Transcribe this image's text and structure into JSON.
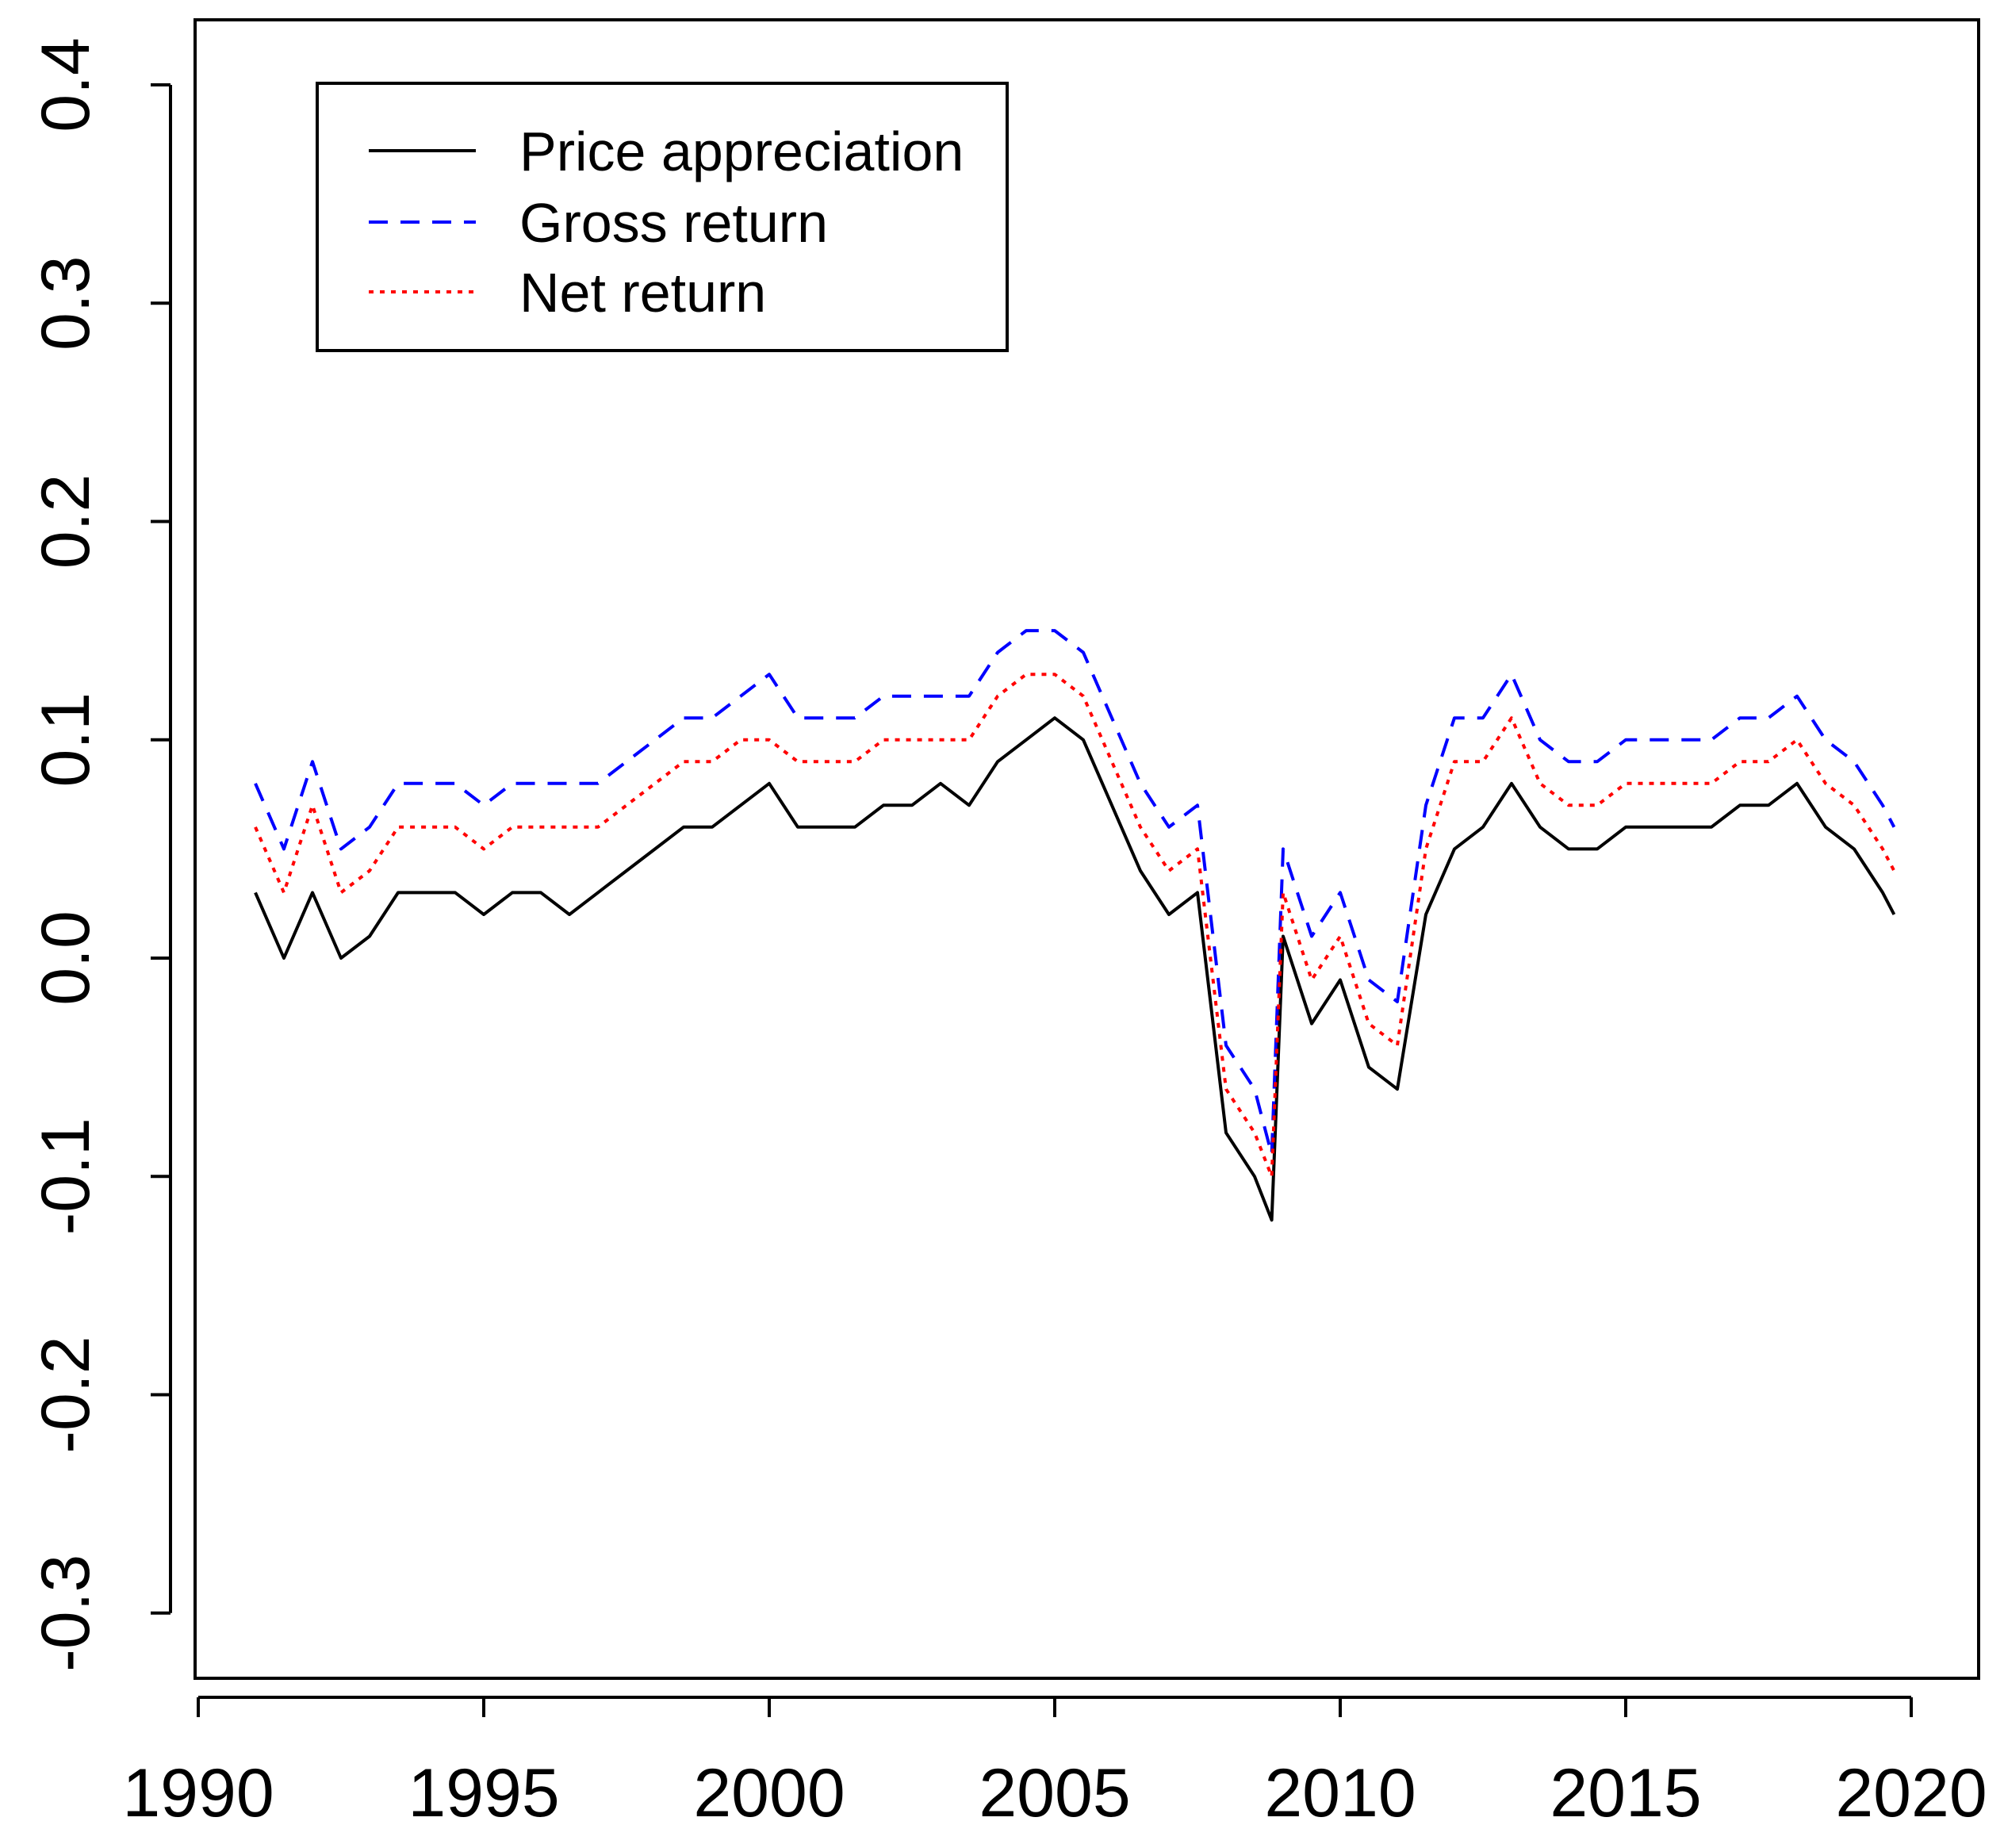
{
  "chart_data": {
    "type": "line",
    "title": "",
    "xlabel": "",
    "ylabel": "",
    "xlim": [
      1990,
      2020
    ],
    "ylim": [
      -0.33,
      0.4
    ],
    "x_ticks": [
      1990,
      1995,
      2000,
      2005,
      2010,
      2015,
      2020
    ],
    "x_tick_labels": [
      "1990",
      "1995",
      "2000",
      "2005",
      "2010",
      "2015",
      "2020"
    ],
    "y_ticks": [
      -0.3,
      -0.2,
      -0.1,
      0.0,
      0.1,
      0.2,
      0.3,
      0.4
    ],
    "y_tick_labels": [
      "-0.3",
      "-0.2",
      "-0.1",
      "0.0",
      "0.1",
      "0.2",
      "0.3",
      "0.4"
    ],
    "legend": {
      "position": "top-left",
      "entries": [
        {
          "label": "Price appreciation",
          "color": "#000000",
          "style": "solid"
        },
        {
          "label": "Gross return",
          "color": "#0000ff",
          "style": "dashed"
        },
        {
          "label": "Net return",
          "color": "#ff0000",
          "style": "dotted"
        }
      ]
    },
    "x": [
      1991.0,
      1991.5,
      1992.0,
      1992.5,
      1993.0,
      1993.5,
      1994.0,
      1994.5,
      1995.0,
      1995.5,
      1996.0,
      1996.5,
      1997.0,
      1997.5,
      1998.0,
      1998.5,
      1999.0,
      1999.5,
      2000.0,
      2000.5,
      2001.0,
      2001.5,
      2002.0,
      2002.5,
      2003.0,
      2003.5,
      2004.0,
      2004.5,
      2005.0,
      2005.5,
      2006.0,
      2006.5,
      2007.0,
      2007.5,
      2008.0,
      2008.5,
      2008.8,
      2009.0,
      2009.5,
      2010.0,
      2010.5,
      2011.0,
      2011.5,
      2012.0,
      2012.5,
      2013.0,
      2013.5,
      2014.0,
      2014.5,
      2015.0,
      2015.5,
      2016.0,
      2016.5,
      2017.0,
      2017.5,
      2018.0,
      2018.5,
      2019.0,
      2019.5,
      2019.7
    ],
    "series": [
      {
        "name": "Price appreciation",
        "color": "#000000",
        "style": "solid",
        "values": [
          0.03,
          0.0,
          0.03,
          0.0,
          0.01,
          0.03,
          0.03,
          0.03,
          0.02,
          0.03,
          0.03,
          0.02,
          0.03,
          0.04,
          0.05,
          0.06,
          0.06,
          0.07,
          0.08,
          0.06,
          0.06,
          0.06,
          0.07,
          0.07,
          0.08,
          0.07,
          0.09,
          0.1,
          0.11,
          0.1,
          0.07,
          0.04,
          0.02,
          0.03,
          -0.08,
          -0.1,
          -0.12,
          0.01,
          -0.03,
          -0.01,
          -0.05,
          -0.06,
          0.02,
          0.05,
          0.06,
          0.08,
          0.06,
          0.05,
          0.05,
          0.06,
          0.06,
          0.06,
          0.06,
          0.07,
          0.07,
          0.08,
          0.06,
          0.05,
          0.03,
          0.02
        ]
      },
      {
        "name": "Gross return",
        "color": "#0000ff",
        "style": "dashed",
        "values": [
          0.08,
          0.05,
          0.09,
          0.05,
          0.06,
          0.08,
          0.08,
          0.08,
          0.07,
          0.08,
          0.08,
          0.08,
          0.08,
          0.09,
          0.1,
          0.11,
          0.11,
          0.12,
          0.13,
          0.11,
          0.11,
          0.11,
          0.12,
          0.12,
          0.12,
          0.12,
          0.14,
          0.15,
          0.15,
          0.14,
          0.11,
          0.08,
          0.06,
          0.07,
          -0.04,
          -0.06,
          -0.09,
          0.05,
          0.01,
          0.03,
          -0.01,
          -0.02,
          0.07,
          0.11,
          0.11,
          0.13,
          0.1,
          0.09,
          0.09,
          0.1,
          0.1,
          0.1,
          0.1,
          0.11,
          0.11,
          0.12,
          0.1,
          0.09,
          0.07,
          0.06
        ]
      },
      {
        "name": "Net return",
        "color": "#ff0000",
        "style": "dotted",
        "values": [
          0.06,
          0.03,
          0.07,
          0.03,
          0.04,
          0.06,
          0.06,
          0.06,
          0.05,
          0.06,
          0.06,
          0.06,
          0.06,
          0.07,
          0.08,
          0.09,
          0.09,
          0.1,
          0.1,
          0.09,
          0.09,
          0.09,
          0.1,
          0.1,
          0.1,
          0.1,
          0.12,
          0.13,
          0.13,
          0.12,
          0.09,
          0.06,
          0.04,
          0.05,
          -0.06,
          -0.08,
          -0.1,
          0.03,
          -0.01,
          0.01,
          -0.03,
          -0.04,
          0.05,
          0.09,
          0.09,
          0.11,
          0.08,
          0.07,
          0.07,
          0.08,
          0.08,
          0.08,
          0.08,
          0.09,
          0.09,
          0.1,
          0.08,
          0.07,
          0.05,
          0.04
        ]
      }
    ]
  }
}
